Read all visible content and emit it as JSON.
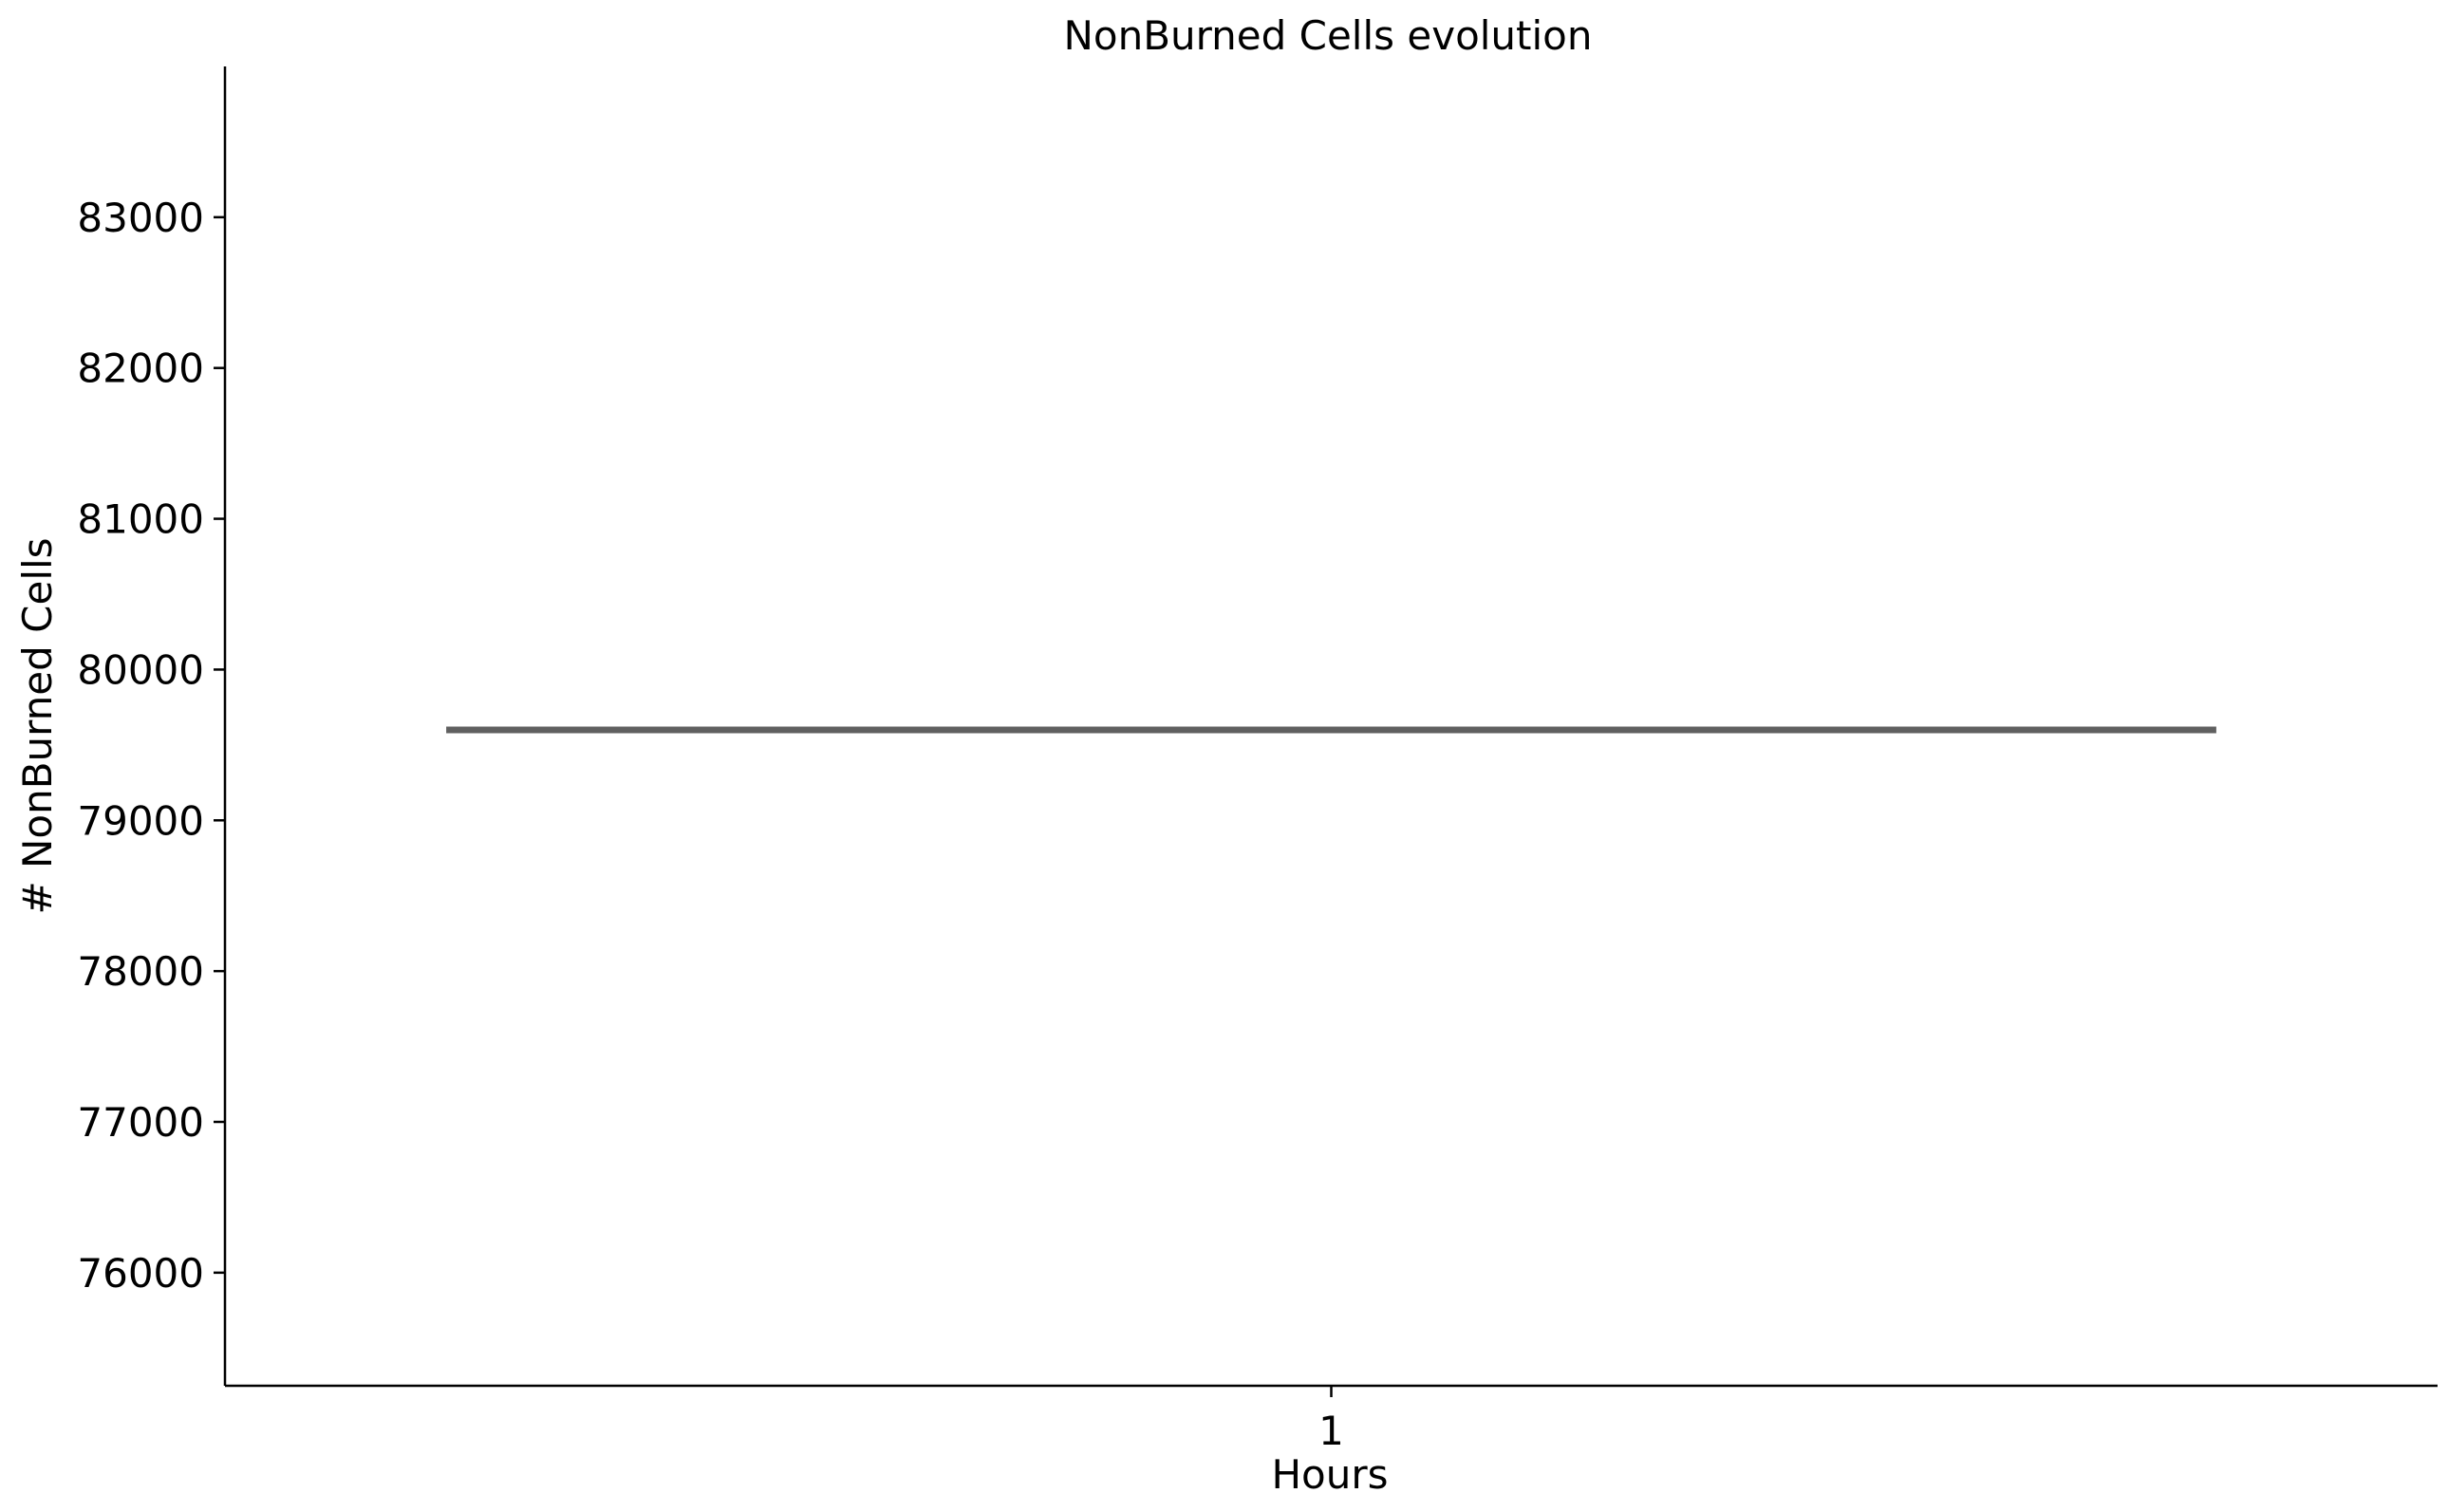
{
  "chart_data": {
    "type": "box",
    "title": "NonBurned Cells evolution",
    "xlabel": "Hours",
    "ylabel": "# NonBurned Cells",
    "categories": [
      "1"
    ],
    "series": [
      {
        "values": [
          79600
        ]
      }
    ],
    "ylim": [
      75250,
      84000
    ],
    "yticks": [
      76000,
      77000,
      78000,
      79000,
      80000,
      81000,
      82000,
      83000
    ],
    "ytick_labels": [
      "76000",
      "77000",
      "78000",
      "79000",
      "80000",
      "81000",
      "82000",
      "83000"
    ],
    "grid": false,
    "legend": "none",
    "colors": {
      "series": "#606060",
      "axis": "#000000"
    }
  }
}
